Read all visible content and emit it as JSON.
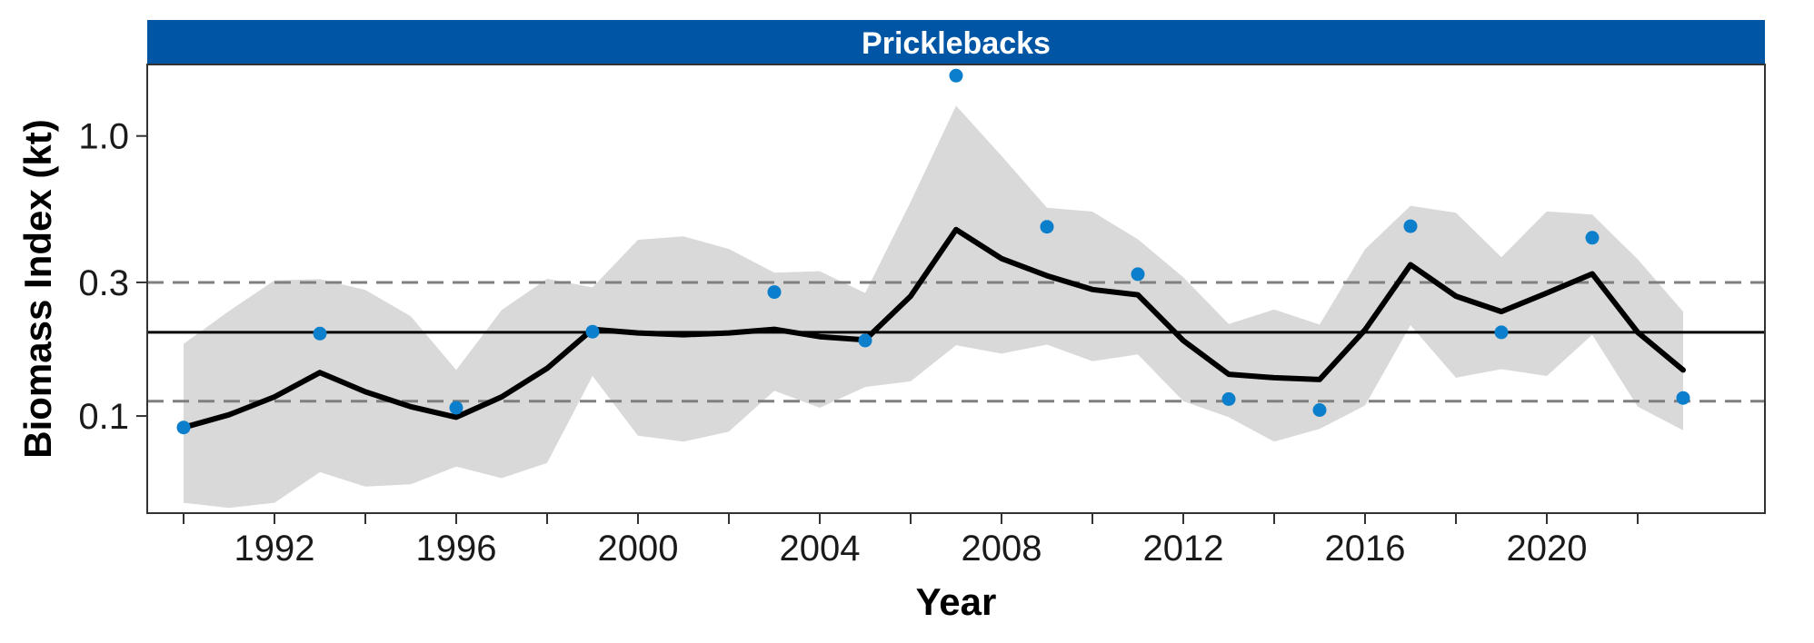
{
  "chart_data": {
    "type": "line",
    "title": "Pricklebacks",
    "xlabel": "Year",
    "ylabel": "Biomass Index (kt)",
    "y_scale": "log",
    "xlim": [
      1989.2,
      2024.8
    ],
    "ylim": [
      0.045,
      1.8
    ],
    "x_ticks": [
      1992,
      1996,
      2000,
      2004,
      2008,
      2012,
      2016,
      2020
    ],
    "x_tick_labels": [
      "1992",
      "1996",
      "2000",
      "2004",
      "2008",
      "2012",
      "2016",
      "2020"
    ],
    "y_ticks": [
      0.1,
      0.3,
      1.0
    ],
    "y_tick_labels": [
      "0.1",
      "0.3",
      "1.0"
    ],
    "grid": false,
    "colors": {
      "strip": "#0055a4",
      "points": "#0b7fcc",
      "ribbon": "#d9d9d9",
      "fit": "#000000",
      "reference": "#000000",
      "bounds": "#7f7f7f"
    },
    "series": [
      {
        "kind": "fit",
        "x": [
          1990,
          1991,
          1992,
          1993,
          1994,
          1995,
          1996,
          1997,
          1998,
          1999,
          2000,
          2001,
          2002,
          2003,
          2004,
          2005,
          2006,
          2007,
          2008,
          2009,
          2010,
          2011,
          2012,
          2013,
          2014,
          2015,
          2016,
          2017,
          2018,
          2019,
          2020,
          2021,
          2022,
          2023
        ],
        "y": [
          0.091,
          0.101,
          0.117,
          0.143,
          0.122,
          0.108,
          0.099,
          0.117,
          0.148,
          0.204,
          0.198,
          0.195,
          0.198,
          0.204,
          0.192,
          0.187,
          0.268,
          0.463,
          0.365,
          0.317,
          0.283,
          0.271,
          0.186,
          0.141,
          0.137,
          0.135,
          0.203,
          0.347,
          0.268,
          0.236,
          0.275,
          0.322,
          0.199,
          0.146
        ]
      },
      {
        "kind": "ribbon",
        "x": [
          1990,
          1991,
          1992,
          1993,
          1994,
          1995,
          1996,
          1997,
          1998,
          1999,
          2000,
          2001,
          2002,
          2003,
          2004,
          2005,
          2006,
          2007,
          2008,
          2009,
          2010,
          2011,
          2012,
          2013,
          2014,
          2015,
          2016,
          2017,
          2018,
          2019,
          2020,
          2021,
          2022,
          2023
        ],
        "lower": [
          0.049,
          0.047,
          0.049,
          0.063,
          0.056,
          0.057,
          0.066,
          0.06,
          0.068,
          0.139,
          0.085,
          0.081,
          0.088,
          0.123,
          0.107,
          0.127,
          0.133,
          0.179,
          0.167,
          0.18,
          0.157,
          0.166,
          0.113,
          0.099,
          0.081,
          0.09,
          0.109,
          0.211,
          0.137,
          0.147,
          0.139,
          0.195,
          0.108,
          0.089
        ],
        "upper": [
          0.181,
          0.237,
          0.305,
          0.308,
          0.282,
          0.227,
          0.146,
          0.239,
          0.309,
          0.288,
          0.426,
          0.438,
          0.395,
          0.325,
          0.329,
          0.275,
          0.582,
          1.282,
          0.849,
          0.554,
          0.537,
          0.428,
          0.313,
          0.213,
          0.24,
          0.212,
          0.394,
          0.563,
          0.532,
          0.369,
          0.538,
          0.524,
          0.363,
          0.236
        ]
      },
      {
        "kind": "observed",
        "x": [
          1990,
          1993,
          1996,
          1999,
          2003,
          2005,
          2007,
          2009,
          2011,
          2013,
          2015,
          2017,
          2019,
          2021,
          2023
        ],
        "y": [
          0.091,
          0.197,
          0.107,
          0.2,
          0.277,
          0.186,
          1.642,
          0.474,
          0.321,
          0.115,
          0.105,
          0.476,
          0.199,
          0.433,
          0.116
        ]
      }
    ],
    "reference_lines": [
      {
        "kind": "mean",
        "y": 0.199,
        "style": "solid"
      },
      {
        "kind": "upper",
        "y": 0.3,
        "style": "dashed"
      },
      {
        "kind": "lower",
        "y": 0.113,
        "style": "dashed"
      }
    ]
  }
}
